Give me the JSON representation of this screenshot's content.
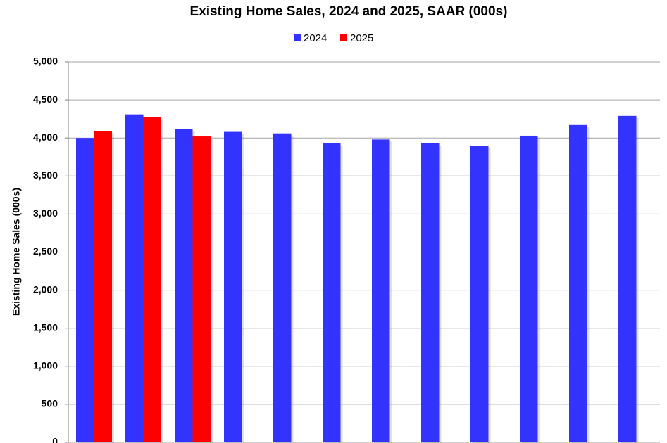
{
  "chart_data": {
    "type": "bar",
    "title": "Existing Home Sales,  2024 and 2025, SAAR (000s)",
    "y_label": "Existing Home Sales (000s)",
    "categories": [
      null,
      null,
      null,
      null,
      null,
      null,
      null,
      null,
      null,
      null,
      null,
      null
    ],
    "series": [
      {
        "name": "2024",
        "color": "#3333ff",
        "values": [
          4000,
          4310,
          4120,
          4080,
          4060,
          3930,
          3980,
          3930,
          3900,
          4030,
          4170,
          4290
        ]
      },
      {
        "name": "2025",
        "color": "#ff0000",
        "values": [
          4090,
          4270,
          4020,
          null,
          null,
          null,
          null,
          null,
          null,
          null,
          null,
          null
        ]
      }
    ],
    "ylim": [
      0,
      5000
    ],
    "yticks": [
      0,
      {
        "value": 500,
        "label": "500"
      },
      {
        "value": 1000,
        "label": "1,000"
      },
      {
        "value": 1500,
        "label": "1,500"
      },
      {
        "value": 2000,
        "label": "2,000"
      },
      {
        "value": 2500,
        "label": "2,500"
      },
      {
        "value": 3000,
        "label": "3,000"
      },
      {
        "value": 3500,
        "label": "3,500"
      },
      {
        "value": 4000,
        "label": "4,000"
      },
      {
        "value": 4500,
        "label": "4,500"
      },
      {
        "value": 5000,
        "label": "5,000"
      }
    ],
    "grid": true,
    "legend": "top"
  }
}
